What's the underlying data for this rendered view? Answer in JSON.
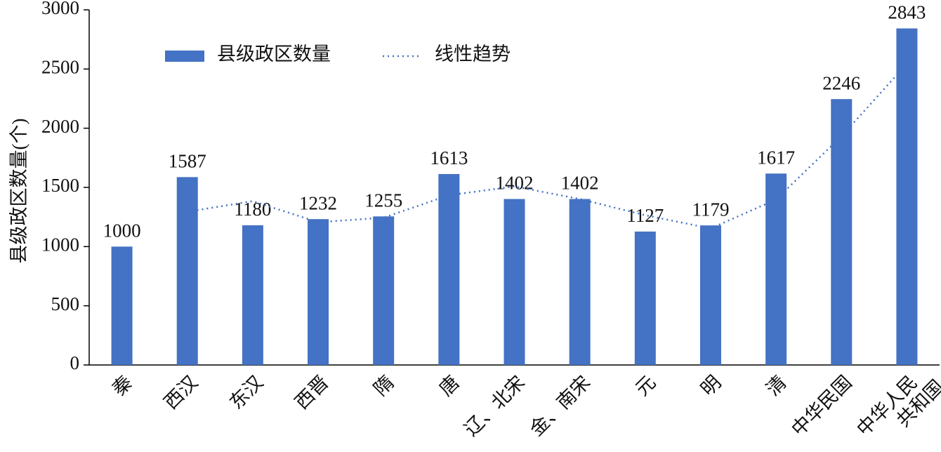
{
  "chart_data": {
    "type": "bar",
    "ylabel": "县级政区数量(个)",
    "categories": [
      "秦",
      "西汉",
      "东汉",
      "西晋",
      "隋",
      "唐",
      "辽、北宋",
      "金、南宋",
      "元",
      "明",
      "清",
      "中华民国",
      "中华人民\n共和国"
    ],
    "series": [
      {
        "name": "县级政区数量",
        "color": "#4472c4",
        "type": "bar",
        "values": [
          1000,
          1587,
          1180,
          1232,
          1255,
          1613,
          1402,
          1402,
          1127,
          1179,
          1617,
          2246,
          2843
        ]
      },
      {
        "name": "线性趋势",
        "color": "#4472c4",
        "type": "line",
        "values": [
          null,
          1294,
          1384,
          1206,
          1244,
          1434,
          1508,
          1402,
          1265,
          1153,
          1398,
          1932,
          2545
        ]
      }
    ],
    "ylim": [
      0,
      3000
    ],
    "yticks": [
      0,
      500,
      1000,
      1500,
      2000,
      2500,
      3000
    ],
    "legend": "top"
  }
}
